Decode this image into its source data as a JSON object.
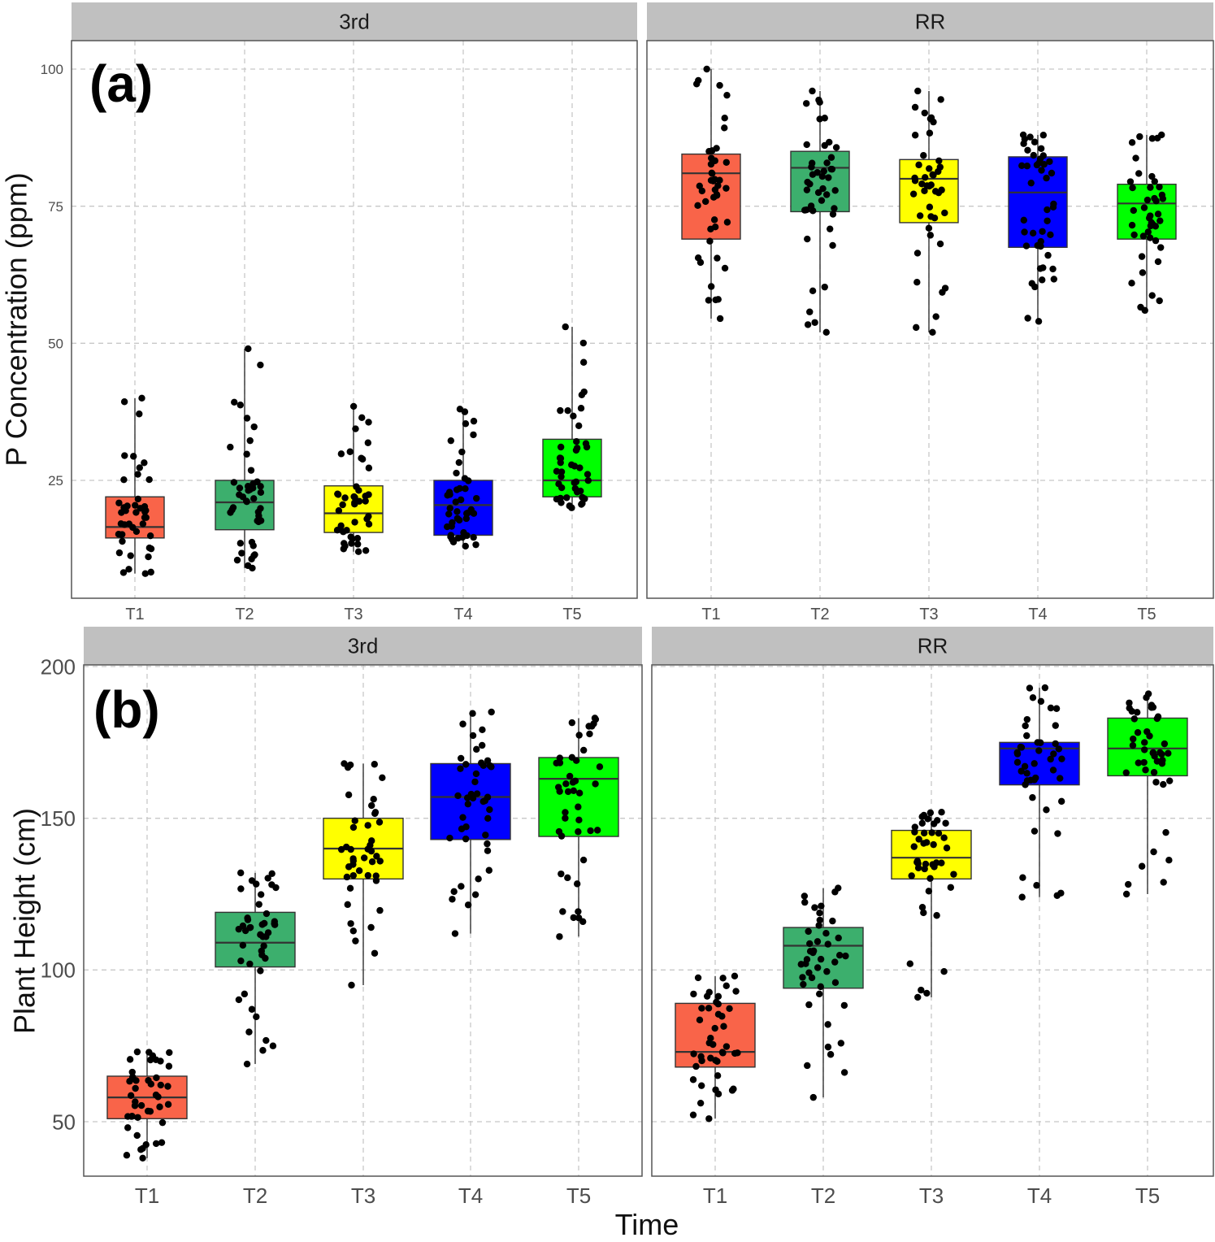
{
  "figure": {
    "xlabel": "Time"
  },
  "colors": {
    "T1": "#f96449",
    "T2": "#3caf6d",
    "T3": "#ffff00",
    "T4": "#0000ff",
    "T5": "#00ff00",
    "strip": "#c0c0c0",
    "grid": "#c8c8c8",
    "point": "#000000"
  },
  "chart_data": [
    {
      "type": "box",
      "panel_label": "(a)",
      "ylabel": "P Concentration (ppm)",
      "yticks": [
        25,
        50,
        75,
        100
      ],
      "ylim": [
        6,
        105
      ],
      "categories": [
        "T1",
        "T2",
        "T3",
        "T4",
        "T5"
      ],
      "facets": [
        {
          "strip": "3rd",
          "boxes": [
            {
              "category": "T1",
              "min": 8,
              "q1": 14.5,
              "median": 16.5,
              "q3": 22,
              "max": 40
            },
            {
              "category": "T2",
              "min": 9,
              "q1": 16,
              "median": 21,
              "q3": 25,
              "max": 49
            },
            {
              "category": "T3",
              "min": 12,
              "q1": 15.5,
              "median": 19,
              "q3": 24,
              "max": 38.5
            },
            {
              "category": "T4",
              "min": 13,
              "q1": 15,
              "median": 20.5,
              "q3": 25,
              "max": 38
            },
            {
              "category": "T5",
              "min": 20,
              "q1": 22,
              "median": 25,
              "q3": 32.5,
              "max": 53
            }
          ]
        },
        {
          "strip": "RR",
          "boxes": [
            {
              "category": "T1",
              "min": 54.5,
              "q1": 69,
              "median": 81,
              "q3": 84.5,
              "max": 100
            },
            {
              "category": "T2",
              "min": 52,
              "q1": 74,
              "median": 82,
              "q3": 85,
              "max": 96
            },
            {
              "category": "T3",
              "min": 52,
              "q1": 72,
              "median": 80,
              "q3": 83.5,
              "max": 96
            },
            {
              "category": "T4",
              "min": 54,
              "q1": 67.5,
              "median": 77.5,
              "q3": 84,
              "max": 88
            },
            {
              "category": "T5",
              "min": 56,
              "q1": 69,
              "median": 75.5,
              "q3": 79,
              "max": 88
            }
          ]
        }
      ]
    },
    {
      "type": "box",
      "panel_label": "(b)",
      "ylabel": "Plant Height (cm)",
      "xlabel": "Time",
      "yticks": [
        50,
        100,
        150,
        200
      ],
      "ylim": [
        31,
        203
      ],
      "categories": [
        "T1",
        "T2",
        "T3",
        "T4",
        "T5"
      ],
      "facets": [
        {
          "strip": "3rd",
          "boxes": [
            {
              "category": "T1",
              "min": 38,
              "q1": 51,
              "median": 58,
              "q3": 65,
              "max": 73
            },
            {
              "category": "T2",
              "min": 69,
              "q1": 101,
              "median": 109,
              "q3": 119,
              "max": 132
            },
            {
              "category": "T3",
              "min": 95,
              "q1": 130,
              "median": 140,
              "q3": 150,
              "max": 168
            },
            {
              "category": "T4",
              "min": 112,
              "q1": 143,
              "median": 157,
              "q3": 168,
              "max": 185
            },
            {
              "category": "T5",
              "min": 111,
              "q1": 144,
              "median": 163,
              "q3": 170,
              "max": 183
            }
          ]
        },
        {
          "strip": "RR",
          "boxes": [
            {
              "category": "T1",
              "min": 51,
              "q1": 68,
              "median": 73,
              "q3": 89,
              "max": 98
            },
            {
              "category": "T2",
              "min": 58,
              "q1": 94,
              "median": 108,
              "q3": 114,
              "max": 127
            },
            {
              "category": "T3",
              "min": 91,
              "q1": 130,
              "median": 137,
              "q3": 146,
              "max": 152
            },
            {
              "category": "T4",
              "min": 124,
              "q1": 161,
              "median": 173,
              "q3": 175,
              "max": 193
            },
            {
              "category": "T5",
              "min": 125,
              "q1": 164,
              "median": 173,
              "q3": 183,
              "max": 191
            }
          ]
        }
      ]
    }
  ]
}
